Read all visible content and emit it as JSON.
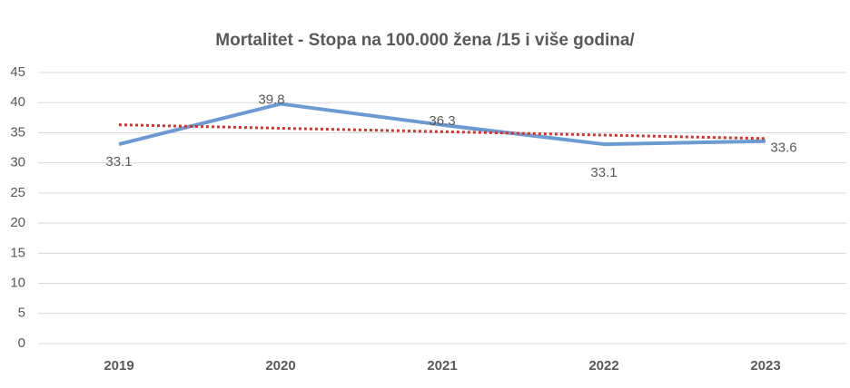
{
  "chart_data": {
    "type": "line",
    "title": "Mortalitet - Stopa na 100.000 žena /15 i više godina/",
    "categories": [
      "2019",
      "2020",
      "2021",
      "2022",
      "2023"
    ],
    "series": [
      {
        "color": "#6c9bd2",
        "values": [
          33.1,
          39.8,
          36.3,
          33.1,
          33.6
        ]
      }
    ],
    "trendline": {
      "type": "linear",
      "color": "#e0302b"
    },
    "ylim": [
      0,
      45
    ],
    "yticks": [
      0,
      5,
      10,
      15,
      20,
      25,
      30,
      35,
      40,
      45
    ],
    "grid": true
  }
}
